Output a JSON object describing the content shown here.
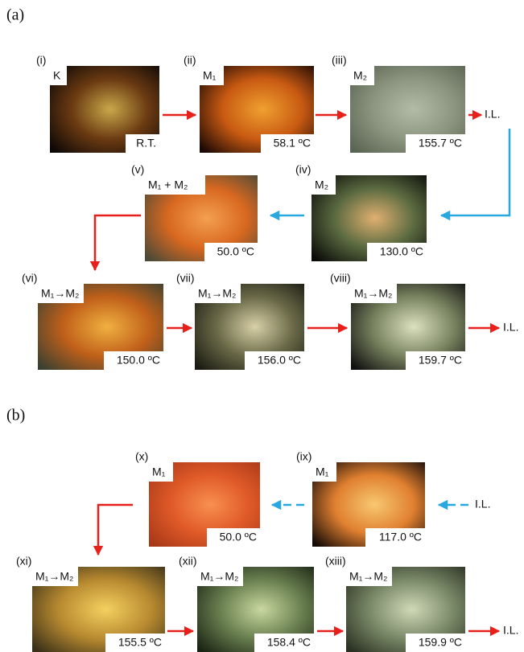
{
  "figure": {
    "label_a": "(a)",
    "label_b": "(b)",
    "panels": [
      {
        "label": "(i)",
        "phase": "K",
        "temperature": "R.T."
      },
      {
        "label": "(ii)",
        "phase": "M₁",
        "temperature": "58.1 ºC"
      },
      {
        "label": "(iii)",
        "phase": "M₂",
        "temperature": "155.7 ºC"
      },
      {
        "label": "(iv)",
        "phase": "M₂",
        "temperature": "130.0 ºC"
      },
      {
        "label": "(v)",
        "phase": "M₁ + M₂",
        "temperature": "50.0 ºC"
      },
      {
        "label": "(vi)",
        "phase": "M₁→M₂",
        "temperature": "150.0 ºC"
      },
      {
        "label": "(vii)",
        "phase": "M₁→M₂",
        "temperature": "156.0 ºC"
      },
      {
        "label": "(viii)",
        "phase": "M₁→M₂",
        "temperature": "159.7 ºC"
      },
      {
        "label": "(ix)",
        "phase": "M₁",
        "temperature": "117.0 ºC"
      },
      {
        "label": "(x)",
        "phase": "M₁",
        "temperature": "50.0 ºC"
      },
      {
        "label": "(xi)",
        "phase": "M₁→M₂",
        "temperature": "155.5 ºC"
      },
      {
        "label": "(xii)",
        "phase": "M₁→M₂",
        "temperature": "158.4 ºC"
      },
      {
        "label": "(xiii)",
        "phase": "M₁→M₂",
        "temperature": "159.9 ºC"
      }
    ],
    "end_labels": [
      "I.L.",
      "I.L.",
      "I.L.",
      "I.L."
    ]
  }
}
